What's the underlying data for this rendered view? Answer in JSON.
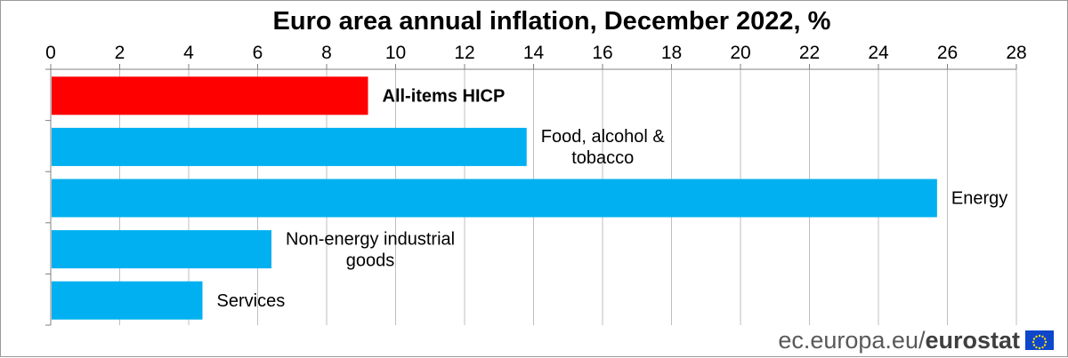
{
  "chart_data": {
    "type": "bar",
    "orientation": "horizontal",
    "title": "Euro area annual inflation, December 2022, %",
    "categories": [
      "All-items HICP",
      "Food, alcohol & tobacco",
      "Energy",
      "Non-energy industrial goods",
      "Services"
    ],
    "label_lines": [
      [
        "All-items HICP"
      ],
      [
        "Food, alcohol &",
        "tobacco"
      ],
      [
        "Energy"
      ],
      [
        "Non-energy industrial",
        "goods"
      ],
      [
        "Services"
      ]
    ],
    "values": [
      9.2,
      13.8,
      25.7,
      6.4,
      4.4
    ],
    "highlight_index": 0,
    "xlim": [
      0,
      28
    ],
    "xticks": [
      0,
      2,
      4,
      6,
      8,
      10,
      12,
      14,
      16,
      18,
      20,
      22,
      24,
      26,
      28
    ],
    "axis_position": "top",
    "grid": true,
    "colors": {
      "highlight": "#ff0000",
      "default": "#00b0f0",
      "grid": "#bfbfbf",
      "axis": "#808080"
    },
    "xlabel": "",
    "ylabel": ""
  },
  "footer": {
    "site": "ec.europa.eu/",
    "brand": "eurostat",
    "logo": "eu-flag-icon"
  }
}
